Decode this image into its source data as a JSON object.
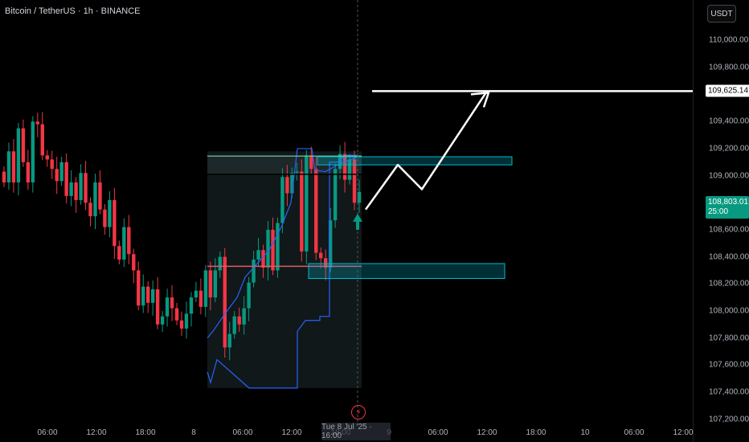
{
  "header": {
    "title": "Bitcoin / TetherUS · 1h · BINANCE",
    "currency_button": "USDT"
  },
  "price_scale": {
    "target_price_label": "109,625.14",
    "current_price_label": "108,803.01",
    "countdown_label": "25:00"
  },
  "crosshair": {
    "time_label": "Tue 8 Jul '25 · 16:00"
  },
  "event_icon": "lightning-icon",
  "colors": {
    "up": "#089981",
    "down": "#f23645",
    "box": "#00bcd4",
    "zone": "#1d2b2e",
    "blue_line": "#2962ff",
    "arrow": "#ffffff"
  },
  "chart_data": {
    "type": "candlestick",
    "title": "Bitcoin / TetherUS · 1h · BINANCE",
    "x_tick_labels": [
      "06:00",
      "12:00",
      "18:00",
      "8",
      "06:00",
      "12:00",
      "18:00",
      "9",
      "06:00",
      "12:00",
      "18:00",
      "10",
      "06:00",
      "12:00"
    ],
    "y_tick_labels": [
      "110,000.00",
      "109,800.00",
      "109,400.00",
      "109,200.00",
      "109,000.00",
      "108,600.00",
      "108,400.00",
      "108,200.00",
      "108,000.00",
      "107,800.00",
      "107,600.00",
      "107,400.00",
      "107,200.00"
    ],
    "y_ticks": [
      110000,
      109800,
      109400,
      109200,
      109000,
      108600,
      108400,
      108200,
      108000,
      107800,
      107600,
      107400,
      107200
    ],
    "ylim": [
      107150,
      110180
    ],
    "candle_closes": [
      108950,
      109180,
      108950,
      109350,
      109100,
      108950,
      109400,
      109380,
      109150,
      109120,
      109050,
      108960,
      109100,
      108850,
      108950,
      108820,
      109020,
      108800,
      108700,
      108950,
      108750,
      108620,
      108820,
      108480,
      108380,
      108620,
      108420,
      108300,
      108040,
      108180,
      108060,
      108160,
      107900,
      107960,
      108100,
      108020,
      107930,
      107870,
      107980,
      108100,
      108150,
      108030,
      108300,
      108100,
      108300,
      108400,
      107730,
      107830,
      107960,
      107900,
      108020,
      108210,
      108380,
      108450,
      108320,
      108600,
      108300,
      108650,
      108990,
      108870,
      109020,
      109030,
      108440,
      109150,
      109050,
      108430,
      108390,
      108320,
      108670,
      109050,
      109160,
      108970,
      109120,
      108800,
      108880
    ],
    "target_price": 109625.14,
    "current_price": 108803.01,
    "resistance_zone": [
      109080,
      109140
    ],
    "support_zone": [
      108240,
      108350
    ],
    "green_line_price": 109145,
    "black_line_price": 109010,
    "red_line_price": 108330,
    "projection_path": [
      [
        108750,
        0
      ],
      [
        109080,
        1
      ],
      [
        108900,
        2
      ],
      [
        109625.14,
        3
      ]
    ],
    "annotations": [
      "long-arrow",
      "projection-arrow"
    ]
  }
}
